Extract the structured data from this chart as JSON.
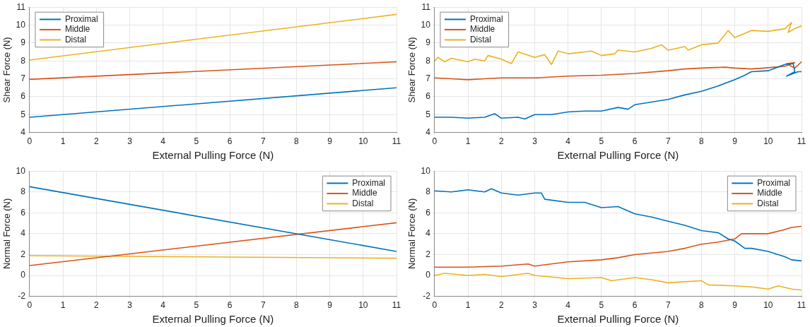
{
  "chart_data": [
    {
      "type": "line",
      "xlabel": "External Pulling Force (N)",
      "ylabel": "Shear Force (N)",
      "xlim": [
        0,
        11
      ],
      "xticks": [
        0,
        1,
        2,
        3,
        4,
        5,
        6,
        7,
        8,
        9,
        10,
        11
      ],
      "ylim": [
        4,
        11
      ],
      "yticks": [
        4,
        5,
        6,
        7,
        8,
        9,
        10,
        11
      ],
      "grid": true,
      "legend": "top left",
      "marker": "none",
      "line_style": "solid",
      "series": [
        {
          "name": "Proximal",
          "color": "#0072bd",
          "x": [
            0,
            11
          ],
          "values": [
            4.85,
            6.5
          ]
        },
        {
          "name": "Middle",
          "color": "#d95319",
          "x": [
            0,
            11
          ],
          "values": [
            6.97,
            7.95
          ]
        },
        {
          "name": "Distal",
          "color": "#edb120",
          "x": [
            0,
            11
          ],
          "values": [
            8.05,
            10.6
          ]
        }
      ]
    },
    {
      "type": "line",
      "xlabel": "External Pulling Force (N)",
      "ylabel": "Shear Force (N)",
      "xlim": [
        0,
        11
      ],
      "xticks": [
        0,
        1,
        2,
        3,
        4,
        5,
        6,
        7,
        8,
        9,
        10,
        11
      ],
      "ylim": [
        4,
        11
      ],
      "yticks": [
        4,
        5,
        6,
        7,
        8,
        9,
        10,
        11
      ],
      "grid": true,
      "legend": "top left",
      "marker": "none",
      "line_style": "solid",
      "series": [
        {
          "name": "Proximal",
          "color": "#0072bd",
          "x": [
            0,
            0.5,
            1,
            1.5,
            1.8,
            2,
            2.5,
            2.7,
            3,
            3.5,
            4,
            4.5,
            5,
            5.5,
            5.8,
            6,
            6.5,
            7,
            7.5,
            8,
            8.5,
            9,
            9.3,
            9.5,
            10,
            10.5,
            10.75,
            10.8,
            10.55,
            10.9,
            11
          ],
          "values": [
            4.85,
            4.85,
            4.8,
            4.85,
            5.05,
            4.8,
            4.85,
            4.75,
            5.0,
            5.0,
            5.15,
            5.2,
            5.2,
            5.4,
            5.3,
            5.55,
            5.7,
            5.85,
            6.1,
            6.3,
            6.6,
            6.95,
            7.2,
            7.4,
            7.45,
            7.8,
            7.85,
            7.4,
            7.15,
            7.4,
            7.4
          ]
        },
        {
          "name": "Middle",
          "color": "#d95319",
          "x": [
            0,
            0.5,
            1,
            1.5,
            2,
            3,
            4,
            5,
            6,
            7,
            7.5,
            8,
            8.7,
            9,
            9.5,
            10,
            10.5,
            10.8,
            10.55,
            10.8,
            11
          ],
          "values": [
            7.05,
            7.0,
            6.95,
            7.0,
            7.05,
            7.05,
            7.15,
            7.2,
            7.3,
            7.45,
            7.55,
            7.6,
            7.65,
            7.6,
            7.55,
            7.62,
            7.7,
            7.9,
            7.85,
            7.6,
            7.95
          ]
        },
        {
          "name": "Distal",
          "color": "#edb120",
          "x": [
            0,
            0.1,
            0.3,
            0.5,
            1,
            1.2,
            1.5,
            1.6,
            2,
            2.3,
            2.5,
            3,
            3.3,
            3.5,
            3.7,
            4,
            4.5,
            4.7,
            5,
            5.4,
            5.5,
            6,
            6.5,
            6.8,
            7,
            7.5,
            7.6,
            8,
            8.5,
            8.8,
            9,
            9.5,
            10,
            10.5,
            10.7,
            10.6,
            10.8,
            11
          ],
          "values": [
            8.0,
            8.2,
            7.95,
            8.15,
            7.95,
            8.1,
            8.0,
            8.3,
            8.1,
            7.85,
            8.5,
            8.2,
            8.35,
            7.8,
            8.55,
            8.4,
            8.5,
            8.55,
            8.3,
            8.4,
            8.6,
            8.5,
            8.7,
            8.9,
            8.6,
            8.8,
            8.6,
            8.9,
            9.0,
            9.7,
            9.3,
            9.7,
            9.65,
            9.8,
            10.15,
            9.6,
            9.8,
            9.95
          ]
        }
      ]
    },
    {
      "type": "line",
      "xlabel": "External Pulling Force (N)",
      "ylabel": "Normal Force (N)",
      "xlim": [
        0,
        11
      ],
      "xticks": [
        0,
        1,
        2,
        3,
        4,
        5,
        6,
        7,
        8,
        9,
        10,
        11
      ],
      "ylim": [
        -2,
        10
      ],
      "yticks": [
        -2,
        0,
        2,
        4,
        6,
        8,
        10
      ],
      "grid": true,
      "legend": "top right",
      "marker": "none",
      "line_style": "solid",
      "series": [
        {
          "name": "Proximal",
          "color": "#0072bd",
          "x": [
            0,
            11
          ],
          "values": [
            8.5,
            2.3
          ]
        },
        {
          "name": "Middle",
          "color": "#d95319",
          "x": [
            0,
            11
          ],
          "values": [
            0.95,
            5.05
          ]
        },
        {
          "name": "Distal",
          "color": "#edb120",
          "x": [
            0,
            11
          ],
          "values": [
            1.9,
            1.65
          ]
        }
      ]
    },
    {
      "type": "line",
      "xlabel": "External Pulling Force (N)",
      "ylabel": "Normal Force (N)",
      "xlim": [
        0,
        11
      ],
      "xticks": [
        0,
        1,
        2,
        3,
        4,
        5,
        6,
        7,
        8,
        9,
        10,
        11
      ],
      "ylim": [
        -2,
        10
      ],
      "yticks": [
        -2,
        0,
        2,
        4,
        6,
        8,
        10
      ],
      "grid": true,
      "legend": "top right",
      "marker": "none",
      "line_style": "solid",
      "series": [
        {
          "name": "Proximal",
          "color": "#0072bd",
          "x": [
            0,
            0.5,
            1,
            1.5,
            1.7,
            2,
            2.5,
            3,
            3.2,
            3.3,
            4,
            4.5,
            5,
            5.5,
            6,
            6.5,
            7,
            7.5,
            8,
            8.5,
            8.8,
            9,
            9.3,
            9.5,
            10,
            10.5,
            10.7,
            11
          ],
          "values": [
            8.1,
            8.0,
            8.2,
            8.0,
            8.3,
            7.9,
            7.7,
            7.9,
            7.9,
            7.3,
            7.0,
            7.0,
            6.5,
            6.6,
            5.9,
            5.6,
            5.2,
            4.8,
            4.3,
            4.1,
            3.5,
            3.3,
            2.6,
            2.6,
            2.3,
            1.8,
            1.5,
            1.4
          ]
        },
        {
          "name": "Middle",
          "color": "#d95319",
          "x": [
            0,
            1,
            2,
            2.8,
            3,
            4,
            5,
            5.5,
            6,
            7,
            7.5,
            8,
            8.5,
            9,
            9.2,
            10,
            10.5,
            10.7,
            11
          ],
          "values": [
            0.8,
            0.8,
            0.9,
            1.1,
            0.9,
            1.3,
            1.5,
            1.7,
            2.0,
            2.3,
            2.6,
            3.0,
            3.2,
            3.5,
            4.0,
            4.0,
            4.4,
            4.6,
            4.7
          ]
        },
        {
          "name": "Distal",
          "color": "#edb120",
          "x": [
            0,
            0.3,
            1,
            1.5,
            2,
            2.8,
            3,
            4,
            5,
            5.3,
            6,
            6.5,
            7,
            7.5,
            8,
            8.2,
            9,
            9.5,
            10,
            10.3,
            10.7,
            11
          ],
          "values": [
            0,
            0.2,
            0,
            0.1,
            -0.1,
            0.2,
            0,
            -0.3,
            -0.2,
            -0.5,
            -0.2,
            -0.4,
            -0.7,
            -0.6,
            -0.5,
            -0.9,
            -1.0,
            -1.1,
            -1.3,
            -1.0,
            -1.3,
            -1.4
          ]
        }
      ]
    }
  ]
}
